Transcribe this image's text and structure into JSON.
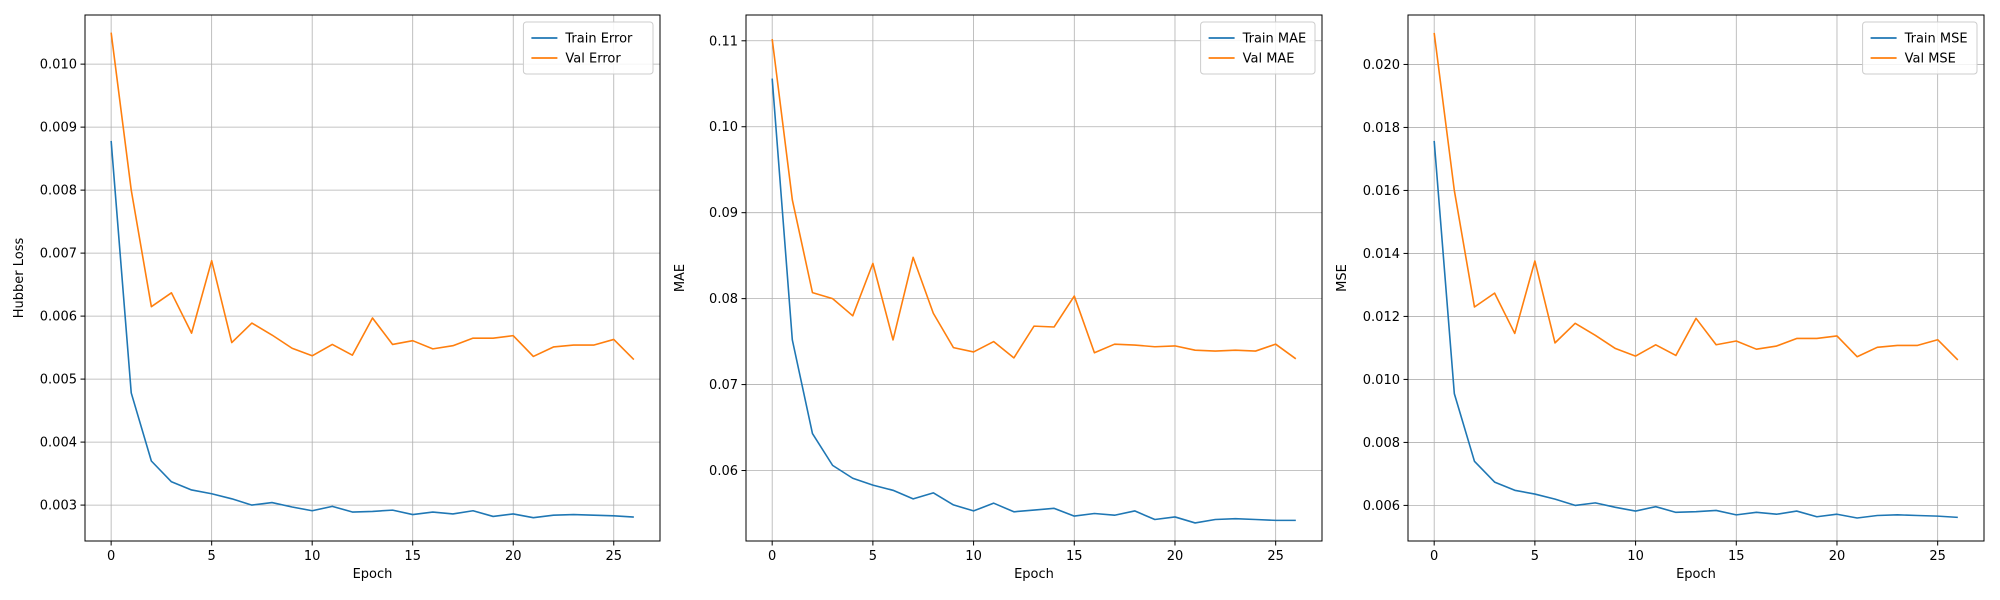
{
  "chart_data": [
    {
      "type": "line",
      "title": "",
      "xlabel": "Epoch",
      "ylabel": "Hubber Loss",
      "xlim": [
        -1.3,
        27.3
      ],
      "ylim": [
        0.00243,
        0.01078
      ],
      "x_ticks": [
        0,
        5,
        10,
        15,
        20,
        25
      ],
      "y_ticks": [
        0.003,
        0.004,
        0.005,
        0.006,
        0.007,
        0.008,
        0.009,
        0.01
      ],
      "y_tick_labels": [
        "0.003",
        "0.004",
        "0.005",
        "0.006",
        "0.007",
        "0.008",
        "0.009",
        "0.010"
      ],
      "grid": true,
      "legend": "top-right",
      "x": [
        0,
        1,
        2,
        3,
        4,
        5,
        6,
        7,
        8,
        9,
        10,
        11,
        12,
        13,
        14,
        15,
        16,
        17,
        18,
        19,
        20,
        21,
        22,
        23,
        24,
        25,
        26
      ],
      "series": [
        {
          "name": "Train Error",
          "color": "#1f77b4",
          "values": [
            0.00878,
            0.00478,
            0.0037,
            0.00337,
            0.00324,
            0.00318,
            0.0031,
            0.003,
            0.00304,
            0.00297,
            0.00291,
            0.00298,
            0.00289,
            0.0029,
            0.00292,
            0.00285,
            0.00289,
            0.00286,
            0.00291,
            0.00282,
            0.00286,
            0.0028,
            0.00284,
            0.00285,
            0.00284,
            0.00283,
            0.00281
          ]
        },
        {
          "name": "Val Error",
          "color": "#ff7f0e",
          "values": [
            0.0105,
            0.008,
            0.00615,
            0.00637,
            0.00573,
            0.00688,
            0.00558,
            0.00589,
            0.0057,
            0.00549,
            0.00537,
            0.00555,
            0.00538,
            0.00597,
            0.00555,
            0.00561,
            0.00548,
            0.00553,
            0.00565,
            0.00565,
            0.00569,
            0.00536,
            0.00551,
            0.00554,
            0.00554,
            0.00563,
            0.00531
          ]
        }
      ]
    },
    {
      "type": "line",
      "title": "",
      "xlabel": "Epoch",
      "ylabel": "MAE",
      "xlim": [
        -1.3,
        27.3
      ],
      "ylim": [
        0.0518,
        0.113
      ],
      "x_ticks": [
        0,
        5,
        10,
        15,
        20,
        25
      ],
      "y_ticks": [
        0.06,
        0.07,
        0.08,
        0.09,
        0.1,
        0.11
      ],
      "y_tick_labels": [
        "0.06",
        "0.07",
        "0.08",
        "0.09",
        "0.10",
        "0.11"
      ],
      "grid": true,
      "legend": "top-right",
      "x": [
        0,
        1,
        2,
        3,
        4,
        5,
        6,
        7,
        8,
        9,
        10,
        11,
        12,
        13,
        14,
        15,
        16,
        17,
        18,
        19,
        20,
        21,
        22,
        23,
        24,
        25,
        26
      ],
      "series": [
        {
          "name": "Train MAE",
          "color": "#1f77b4",
          "values": [
            0.1056,
            0.0752,
            0.0643,
            0.0606,
            0.0591,
            0.0583,
            0.0577,
            0.0567,
            0.0574,
            0.056,
            0.0553,
            0.0562,
            0.0552,
            0.0554,
            0.0556,
            0.0547,
            0.055,
            0.0548,
            0.0553,
            0.0543,
            0.0546,
            0.0539,
            0.0543,
            0.0544,
            0.0543,
            0.0542,
            0.0542
          ]
        },
        {
          "name": "Val MAE",
          "color": "#ff7f0e",
          "values": [
            0.1102,
            0.0915,
            0.0807,
            0.08,
            0.078,
            0.0841,
            0.0752,
            0.0848,
            0.0783,
            0.0743,
            0.0738,
            0.075,
            0.0731,
            0.0768,
            0.0767,
            0.0803,
            0.0737,
            0.0747,
            0.0746,
            0.0744,
            0.0745,
            0.074,
            0.0739,
            0.074,
            0.0739,
            0.0747,
            0.073
          ]
        }
      ]
    },
    {
      "type": "line",
      "title": "",
      "xlabel": "Epoch",
      "ylabel": "MSE",
      "xlim": [
        -1.3,
        27.3
      ],
      "ylim": [
        0.00487,
        0.02157
      ],
      "x_ticks": [
        0,
        5,
        10,
        15,
        20,
        25
      ],
      "y_ticks": [
        0.006,
        0.008,
        0.01,
        0.012,
        0.014,
        0.016,
        0.018,
        0.02
      ],
      "y_tick_labels": [
        "0.006",
        "0.008",
        "0.010",
        "0.012",
        "0.014",
        "0.016",
        "0.018",
        "0.020"
      ],
      "grid": true,
      "legend": "top-right",
      "x": [
        0,
        1,
        2,
        3,
        4,
        5,
        6,
        7,
        8,
        9,
        10,
        11,
        12,
        13,
        14,
        15,
        16,
        17,
        18,
        19,
        20,
        21,
        22,
        23,
        24,
        25,
        26
      ],
      "series": [
        {
          "name": "Train MSE",
          "color": "#1f77b4",
          "values": [
            0.01757,
            0.00955,
            0.0074,
            0.00674,
            0.00648,
            0.00636,
            0.0062,
            0.006,
            0.00608,
            0.00594,
            0.00582,
            0.00596,
            0.00578,
            0.0058,
            0.00584,
            0.0057,
            0.00578,
            0.00572,
            0.00582,
            0.00564,
            0.00572,
            0.0056,
            0.00568,
            0.0057,
            0.00568,
            0.00566,
            0.00562
          ]
        },
        {
          "name": "Val MSE",
          "color": "#ff7f0e",
          "values": [
            0.021,
            0.016,
            0.0123,
            0.01274,
            0.01146,
            0.01376,
            0.01116,
            0.01178,
            0.0114,
            0.01098,
            0.01074,
            0.0111,
            0.01076,
            0.01194,
            0.0111,
            0.01122,
            0.01096,
            0.01106,
            0.0113,
            0.0113,
            0.01138,
            0.01072,
            0.01102,
            0.01108,
            0.01108,
            0.01126,
            0.01062
          ]
        }
      ]
    }
  ]
}
